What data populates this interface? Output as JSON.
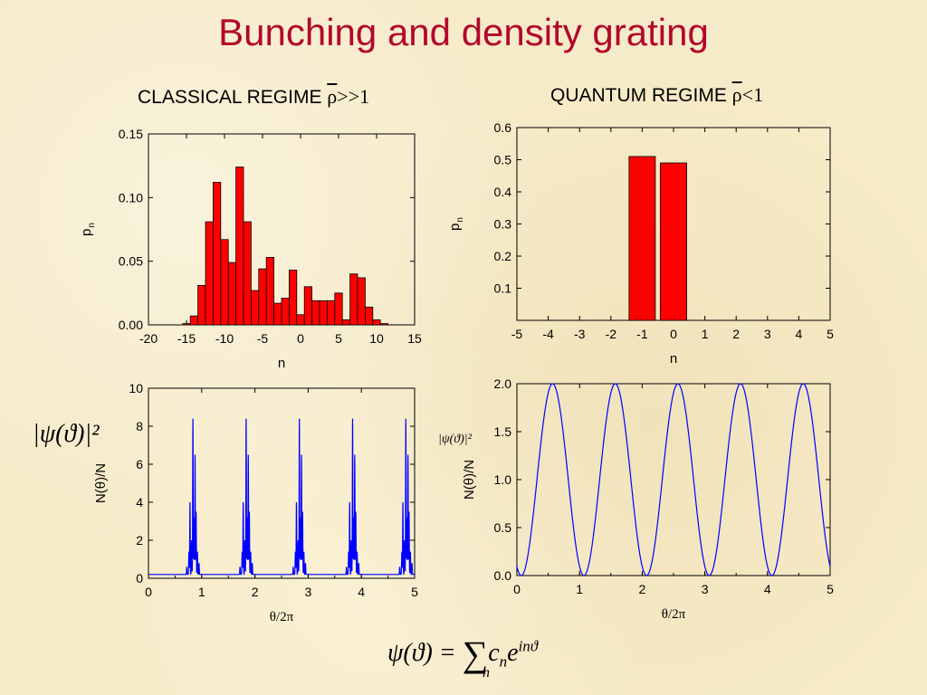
{
  "title": "Bunching and density grating",
  "left_regime": {
    "label": "CLASSICAL REGIME ",
    "symbol": "ρ",
    "relation": ">>1"
  },
  "right_regime": {
    "label": "QUANTUM REGIME ",
    "symbol": "ρ",
    "relation": "<1"
  },
  "psi_label": "|ψ(ϑ)|²",
  "formula": {
    "lhs": "ψ(ϑ) = ",
    "sigma": "∑",
    "sum_index": "n",
    "coef": "c",
    "coef_sub": "n",
    "base": "e",
    "exponent": "inϑ"
  },
  "colors": {
    "title": "#b3072d",
    "bar": "#ff0000",
    "line": "#0000ff"
  },
  "chart_data": [
    {
      "id": "classical_pn",
      "type": "bar",
      "xlabel": "n",
      "ylabel": "p",
      "ylabel_sub": "n",
      "xlim": [
        -20,
        15
      ],
      "ylim": [
        0,
        0.15
      ],
      "xticks": [
        "-20",
        "-15",
        "-10",
        "-5",
        "0",
        "5",
        "10",
        "15"
      ],
      "yticks": [
        "0.00",
        "0.05",
        "0.10",
        "0.15"
      ],
      "x": [
        -15,
        -14,
        -13,
        -12,
        -11,
        -10,
        -9,
        -8,
        -7,
        -6,
        -5,
        -4,
        -3,
        -2,
        -1,
        0,
        1,
        2,
        3,
        4,
        5,
        6,
        7,
        8,
        9,
        10,
        11
      ],
      "values": [
        0.001,
        0.007,
        0.031,
        0.081,
        0.112,
        0.067,
        0.049,
        0.124,
        0.081,
        0.027,
        0.044,
        0.053,
        0.017,
        0.021,
        0.043,
        0.008,
        0.03,
        0.019,
        0.019,
        0.019,
        0.025,
        0.004,
        0.04,
        0.037,
        0.014,
        0.004,
        0.001
      ]
    },
    {
      "id": "quantum_pn",
      "type": "bar",
      "xlabel": "n",
      "ylabel": "p",
      "ylabel_sub": "n",
      "xlim": [
        -5,
        5
      ],
      "ylim": [
        0,
        0.6
      ],
      "xticks": [
        "-5",
        "-4",
        "-3",
        "-2",
        "-1",
        "0",
        "1",
        "2",
        "3",
        "4",
        "5"
      ],
      "yticks": [
        "0.1",
        "0.2",
        "0.3",
        "0.4",
        "0.5",
        "0.6"
      ],
      "x": [
        -1,
        0
      ],
      "values": [
        0.51,
        0.49
      ]
    },
    {
      "id": "classical_density",
      "type": "line",
      "xlabel": "θ/2π",
      "ylabel": "N(θ)/N",
      "xlim": [
        0,
        5
      ],
      "ylim": [
        0,
        10
      ],
      "xticks": [
        "0",
        "1",
        "2",
        "3",
        "4",
        "5"
      ],
      "yticks": [
        "0",
        "2",
        "4",
        "6",
        "8",
        "10"
      ],
      "period": 1,
      "baseline": 0.2,
      "peaks": [
        {
          "x": 0.72,
          "y": 0.4
        },
        {
          "x": 0.76,
          "y": 1.2
        },
        {
          "x": 0.78,
          "y": 3.8
        },
        {
          "x": 0.81,
          "y": 1.8
        },
        {
          "x": 0.835,
          "y": 8.2
        },
        {
          "x": 0.855,
          "y": 3.0
        },
        {
          "x": 0.875,
          "y": 6.3
        },
        {
          "x": 0.895,
          "y": 3.3
        },
        {
          "x": 0.92,
          "y": 1.2
        },
        {
          "x": 0.95,
          "y": 0.6
        }
      ]
    },
    {
      "id": "quantum_density",
      "type": "line",
      "xlabel": "θ/2π",
      "ylabel": "N(θ)/N",
      "xlim": [
        0,
        5
      ],
      "ylim": [
        0,
        2.0
      ],
      "xticks": [
        "0",
        "1",
        "2",
        "3",
        "4",
        "5"
      ],
      "yticks": [
        "0.0",
        "0.5",
        "1.0",
        "1.5",
        "2.0"
      ],
      "formula": "1 + cos(2π(θ/2π - 0.57))",
      "peak_x": [
        0.57,
        1.57,
        2.57,
        3.57,
        4.57
      ],
      "peak_y": 2.0
    }
  ]
}
